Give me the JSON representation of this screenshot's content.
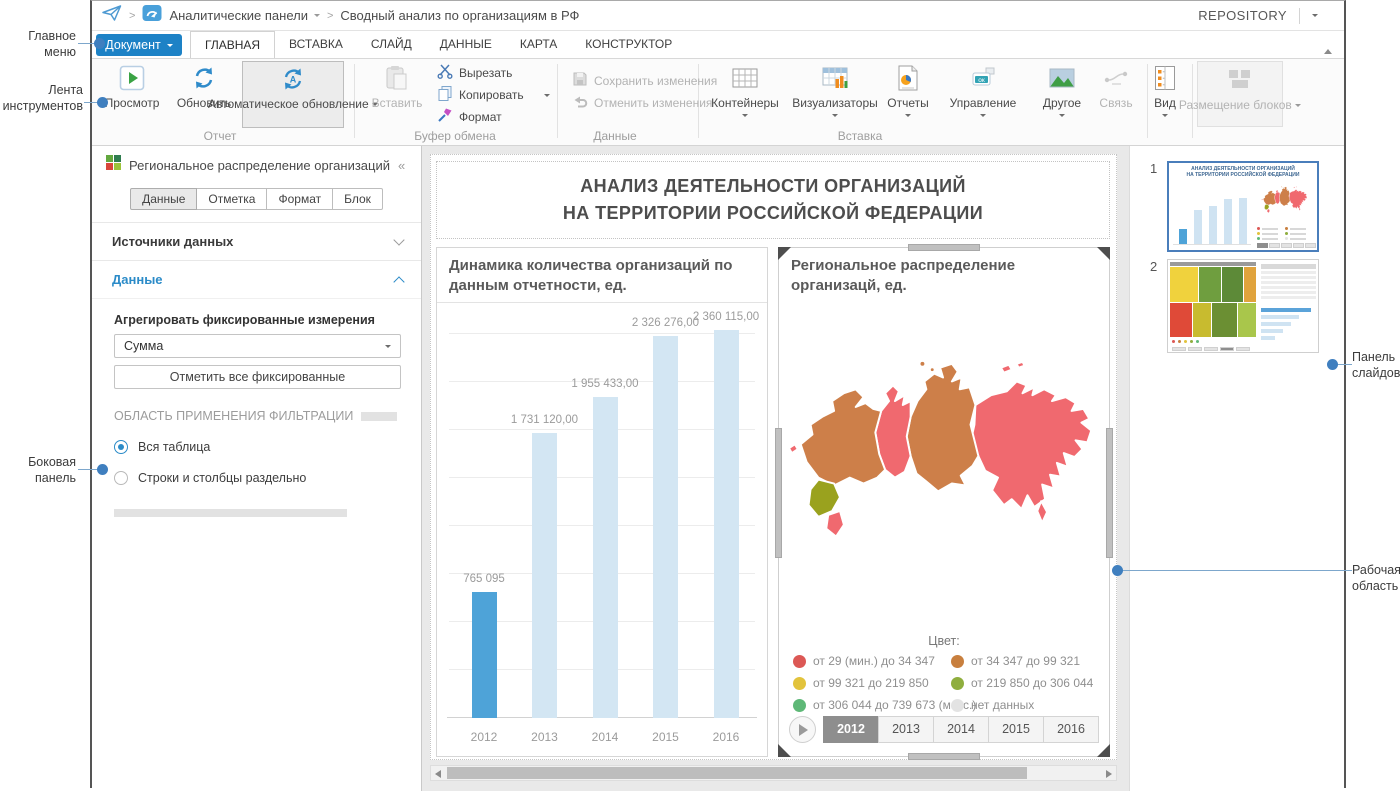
{
  "annotations": {
    "main_menu": "Главное меню",
    "ribbon": "Лента инструментов",
    "side_panel": "Боковая панель",
    "slides_panel": "Панель слайдов",
    "work_area": "Рабочая область"
  },
  "topbar": {
    "breadcrumb_parent": "Аналитические панели",
    "breadcrumb_current": "Сводный анализ по организациям в РФ",
    "repository_label": "REPOSITORY"
  },
  "menubar": {
    "document_button": "Документ",
    "tabs": [
      "ГЛАВНАЯ",
      "ВСТАВКА",
      "СЛАЙД",
      "ДАННЫЕ",
      "КАРТА",
      "КОНСТРУКТОР"
    ],
    "active_tab": "ГЛАВНАЯ"
  },
  "ribbon": {
    "preview": "Просмотр",
    "refresh": "Обновить",
    "auto_refresh": "Автоматическое обновление",
    "paste": "Вставить",
    "cut": "Вырезать",
    "copy": "Копировать",
    "format": "Формат",
    "save_changes": "Сохранить изменения",
    "undo_changes": "Отменить изменения",
    "containers": "Контейнеры",
    "visualizers": "Визуализаторы",
    "reports": "Отчеты",
    "management": "Управление",
    "other": "Другое",
    "link": "Связь",
    "view": "Вид",
    "blocks_layout": "Размещение блоков",
    "groups": {
      "report": "Отчет",
      "clipboard": "Буфер обмена",
      "data": "Данные",
      "insert": "Вставка"
    }
  },
  "sidebar": {
    "title": "Региональное распределение организаций",
    "tabs": [
      "Данные",
      "Отметка",
      "Формат",
      "Блок"
    ],
    "active_tab": "Данные",
    "sources_section": "Источники данных",
    "data_section": "Данные",
    "aggregate_label": "Агрегировать фиксированные измерения",
    "aggregate_value": "Сумма",
    "mark_all_button": "Отметить все фиксированные",
    "filter_scope_label": "ОБЛАСТЬ ПРИМЕНЕНИЯ ФИЛЬТРАЦИИ",
    "radio_all_table": "Вся таблица",
    "radio_rows_cols": "Строки и столбцы раздельно",
    "selected_radio": "Вся таблица"
  },
  "slide": {
    "title_line1": "АНАЛИЗ ДЕЯТЕЛЬНОСТИ ОРГАНИЗАЦИЙ",
    "title_line2": "НА ТЕРРИТОРИИ РОССИЙСКОЙ ФЕДЕРАЦИИ"
  },
  "chart_data": [
    {
      "type": "bar",
      "title": "Динамика количества организаций по данным отчетности, ед.",
      "categories": [
        "2012",
        "2013",
        "2014",
        "2015",
        "2016"
      ],
      "values": [
        765095,
        1731120,
        1955433,
        2326276,
        2360115
      ],
      "value_labels": [
        "765 095",
        "1 731 120,00",
        "1 955 433,00",
        "2 326 276,00",
        "2 360 115,00"
      ],
      "selected_index": 0,
      "bar_color": "#d3e6f3",
      "selected_bar_color": "#4ea3d8",
      "ylim": [
        0,
        2500000
      ],
      "grid": true,
      "legend_position": "none"
    },
    {
      "type": "choropleth-map",
      "title": "Региональное распределение организацй, ед.",
      "legend_title": "Цвет:",
      "legend": [
        {
          "color": "#dc5855",
          "label": "от 29 (мин.) до 34 347"
        },
        {
          "color": "#c87f3e",
          "label": "от 34 347 до 99 321"
        },
        {
          "color": "#e2c33c",
          "label": "от 99 321 до 219 850"
        },
        {
          "color": "#8fae3e",
          "label": "от 219 850 до 306 044"
        },
        {
          "color": "#5eb877",
          "label": "от 306 044 до 739 673 (макс.)"
        },
        {
          "color": "#e3e3e3",
          "label": "нет данных"
        }
      ],
      "map_colors": {
        "pink": "#f0696f",
        "orange": "#cd7f49",
        "olive": "#9aa21e"
      },
      "years": [
        "2012",
        "2013",
        "2014",
        "2015",
        "2016"
      ],
      "selected_year": "2012"
    }
  ],
  "slides_panel": {
    "slides": [
      {
        "number": "1",
        "selected": true
      },
      {
        "number": "2",
        "selected": false
      }
    ]
  }
}
